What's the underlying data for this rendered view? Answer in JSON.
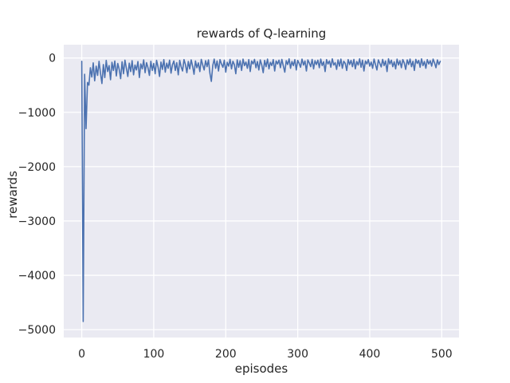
{
  "window": {
    "background": "#ffffff"
  },
  "chart_data": {
    "type": "line",
    "title": "rewards of Q-learning",
    "xlabel": "episodes",
    "ylabel": "rewards",
    "xlim": [
      -25,
      524
    ],
    "ylim": [
      -5145,
      245
    ],
    "xticks": [
      0,
      100,
      200,
      300,
      400,
      500
    ],
    "yticks": [
      0,
      -1000,
      -2000,
      -3000,
      -4000,
      -5000
    ],
    "grid": true,
    "legend_position": "none",
    "styles": {
      "axes_background": "#eaeaf2",
      "grid_color": "#ffffff",
      "line_color": "#4c72b0",
      "text_color": "#262626"
    },
    "series": [
      {
        "name": "rewards",
        "x_start": 0,
        "x_step": 2,
        "values": [
          -60,
          -4850,
          -300,
          -1300,
          -450,
          -500,
          -180,
          -350,
          -90,
          -420,
          -150,
          -320,
          -60,
          -280,
          -470,
          -120,
          -360,
          -45,
          -250,
          -140,
          -400,
          -80,
          -230,
          -55,
          -330,
          -100,
          -210,
          -380,
          -70,
          -290,
          -40,
          -190,
          -340,
          -95,
          -250,
          -50,
          -310,
          -130,
          -220,
          -65,
          -360,
          -110,
          -200,
          -35,
          -270,
          -85,
          -180,
          -320,
          -60,
          -230,
          -100,
          -290,
          -45,
          -170,
          -340,
          -75,
          -210,
          -30,
          -260,
          -95,
          -190,
          -40,
          -280,
          -125,
          -55,
          -230,
          -85,
          -310,
          -45,
          -160,
          -240,
          -30,
          -120,
          -270,
          -65,
          -200,
          -35,
          -150,
          -300,
          -55,
          -180,
          -90,
          -250,
          -25,
          -130,
          -220,
          -50,
          -160,
          -35,
          -280,
          -430,
          -140,
          -20,
          -190,
          -55,
          -240,
          -30,
          -110,
          -170,
          -40,
          -260,
          -80,
          -150,
          -25,
          -200,
          -60,
          -120,
          -290,
          -35,
          -170,
          -50,
          -230,
          -20,
          -140,
          -75,
          -190,
          -30,
          -250,
          -55,
          -110,
          -25,
          -180,
          -65,
          -220,
          -35,
          -130,
          -270,
          -45,
          -160,
          -20,
          -200,
          -80,
          -140,
          -30,
          -240,
          -55,
          -110,
          -40,
          -180,
          -25,
          -150,
          -260,
          -50,
          -120,
          -15,
          -190,
          -65,
          -140,
          -30,
          -220,
          -45,
          -100,
          -170,
          -20,
          -130,
          -55,
          -240,
          -35,
          -90,
          -160,
          -25,
          -200,
          -50,
          -120,
          -40,
          -180,
          -20,
          -140,
          -70,
          -250,
          -30,
          -110,
          -55,
          -170,
          -15,
          -130,
          -85,
          -210,
          -35,
          -150,
          -20,
          -190,
          -60,
          -100,
          -230,
          -30,
          -120,
          -45,
          -160,
          -25,
          -200,
          -65,
          -130,
          -15,
          -170,
          -40,
          -240,
          -55,
          -110,
          -30,
          -150,
          -75,
          -190,
          -20,
          -120,
          -220,
          -35,
          -100,
          -165,
          -25,
          -140,
          -55,
          -250,
          -15,
          -110,
          -40,
          -160,
          -70,
          -200,
          -20,
          -130,
          -50,
          -180,
          -30,
          -90,
          -210,
          -35,
          -120,
          -20,
          -160,
          -60,
          -230,
          -25,
          -100,
          -45,
          -170,
          -15,
          -140,
          -65,
          -190,
          -30,
          -110,
          -50,
          -150,
          -20,
          -90,
          -180,
          -35,
          -120,
          -60
        ]
      }
    ]
  }
}
